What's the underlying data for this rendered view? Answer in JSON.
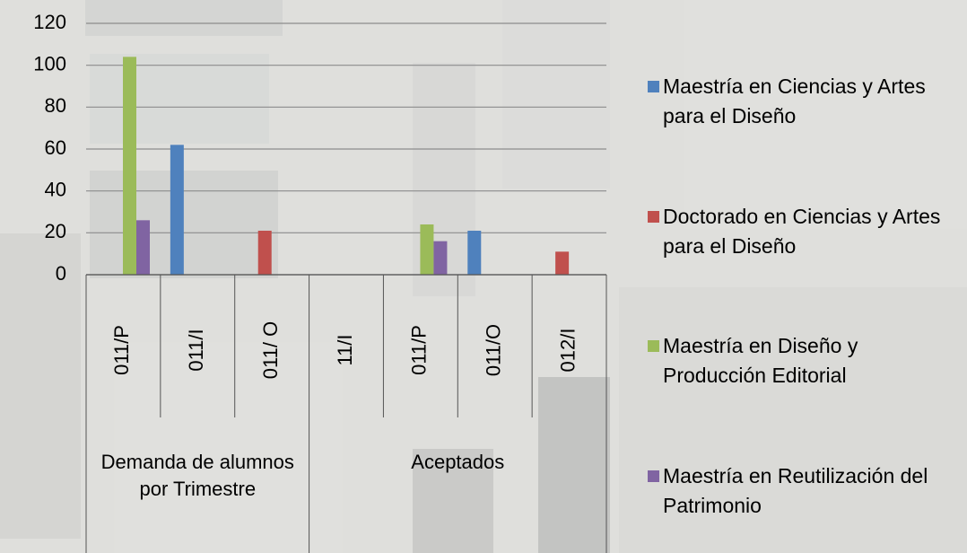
{
  "chart_data": {
    "type": "bar",
    "groups": [
      {
        "name": "Demanda de alumnos por Trimestre",
        "categories": [
          "011/P",
          "011/I",
          "011/ O"
        ]
      },
      {
        "name": "Aceptados",
        "categories": [
          "11/I",
          "011/P",
          "011/O",
          "012/I"
        ]
      }
    ],
    "series": [
      {
        "name": "Maestría en Ciencias y Artes para el Diseño",
        "color": "#4f81bd",
        "values": [
          null,
          62,
          null,
          null,
          null,
          21,
          null
        ]
      },
      {
        "name": "Doctorado en Ciencias y Artes para el Diseño",
        "color": "#c0504d",
        "values": [
          null,
          null,
          21,
          null,
          null,
          null,
          11
        ]
      },
      {
        "name": "Maestría en Diseño y Producción Editorial",
        "color": "#9bbb59",
        "values": [
          104,
          null,
          null,
          null,
          24,
          null,
          null
        ]
      },
      {
        "name": "Maestría en Reutilización del Patrimonio",
        "color": "#8064a2",
        "values": [
          26,
          null,
          null,
          null,
          16,
          null,
          null
        ]
      }
    ],
    "ylim": [
      0,
      120
    ],
    "yticks": [
      0,
      20,
      40,
      60,
      80,
      100,
      120
    ],
    "grid": true
  }
}
